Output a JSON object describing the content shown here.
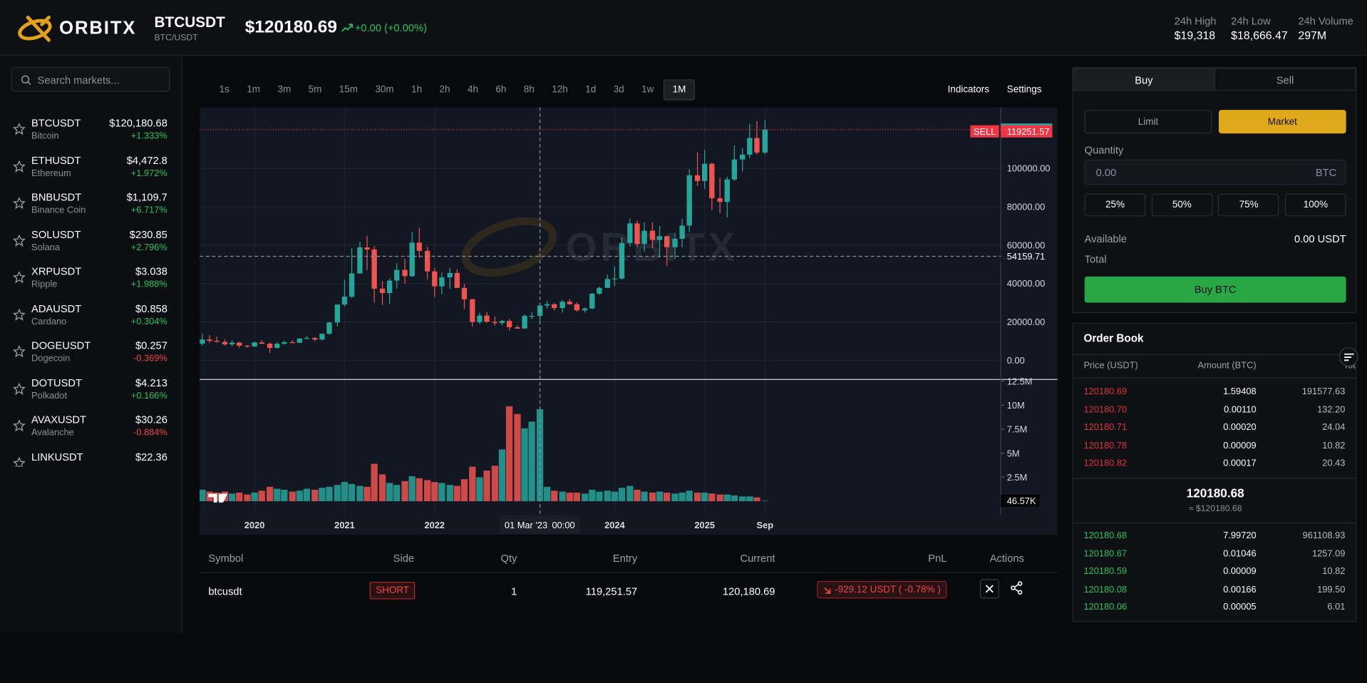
{
  "header": {
    "brand": "ORBITX",
    "symbol": "BTCUSDT",
    "pair": "BTC/USDT",
    "price": "$120180.69",
    "change": "+0.00 (+0.00%)",
    "stats": [
      {
        "label": "24h High",
        "value": "$19,318"
      },
      {
        "label": "24h Low",
        "value": "$18,666.47"
      },
      {
        "label": "24h Volume",
        "value": "297M"
      }
    ]
  },
  "sidebar": {
    "search_placeholder": "Search markets...",
    "markets": [
      {
        "symbol": "BTCUSDT",
        "name": "Bitcoin",
        "price": "$120,180.68",
        "change": "+1.333%"
      },
      {
        "symbol": "ETHUSDT",
        "name": "Ethereum",
        "price": "$4,472.8",
        "change": "+1.972%"
      },
      {
        "symbol": "BNBUSDT",
        "name": "Binance Coin",
        "price": "$1,109.7",
        "change": "+6.717%"
      },
      {
        "symbol": "SOLUSDT",
        "name": "Solana",
        "price": "$230.85",
        "change": "+2.796%"
      },
      {
        "symbol": "XRPUSDT",
        "name": "Ripple",
        "price": "$3.038",
        "change": "+1.988%"
      },
      {
        "symbol": "ADAUSDT",
        "name": "Cardano",
        "price": "$0.858",
        "change": "+0.304%"
      },
      {
        "symbol": "DOGEUSDT",
        "name": "Dogecoin",
        "price": "$0.257",
        "change": "-0.369%"
      },
      {
        "symbol": "DOTUSDT",
        "name": "Polkadot",
        "price": "$4.213",
        "change": "+0.166%"
      },
      {
        "symbol": "AVAXUSDT",
        "name": "Avalanche",
        "price": "$30.26",
        "change": "-0.884%"
      },
      {
        "symbol": "LINKUSDT",
        "price": "$22.36"
      }
    ]
  },
  "toolbar": {
    "timeframes": [
      "1s",
      "1m",
      "3m",
      "5m",
      "15m",
      "30m",
      "1h",
      "2h",
      "4h",
      "6h",
      "8h",
      "12h",
      "1d",
      "3d",
      "1w",
      "1M"
    ],
    "active": "1M",
    "indicators": "Indicators",
    "settings": "Settings"
  },
  "chart_data": {
    "type": "candlestick",
    "x": [
      2019.42,
      2019.5,
      2019.58,
      2019.67,
      2019.75,
      2019.83,
      2019.92,
      2020,
      2020.08,
      2020.17,
      2020.25,
      2020.33,
      2020.42,
      2020.5,
      2020.58,
      2020.67,
      2020.75,
      2020.83,
      2020.92,
      2021,
      2021.08,
      2021.17,
      2021.25,
      2021.33,
      2021.42,
      2021.5,
      2021.58,
      2021.67,
      2021.75,
      2021.83,
      2021.92,
      2022,
      2022.08,
      2022.17,
      2022.25,
      2022.33,
      2022.42,
      2022.5,
      2022.58,
      2022.67,
      2022.75,
      2022.83,
      2022.92,
      2023,
      2023.08,
      2023.17,
      2023.25,
      2023.33,
      2023.42,
      2023.5,
      2023.58,
      2023.67,
      2023.75,
      2023.83,
      2023.92,
      2024,
      2024.08,
      2024.17,
      2024.25,
      2024.33,
      2024.42,
      2024.5,
      2024.58,
      2024.67,
      2024.75,
      2024.83,
      2024.92,
      2025,
      2025.08,
      2025.17,
      2025.25,
      2025.33,
      2025.42,
      2025.5,
      2025.58,
      2025.67
    ],
    "open": [
      8600,
      10800,
      10100,
      9600,
      8300,
      9200,
      7600,
      7200,
      9300,
      8600,
      6400,
      8600,
      9400,
      9100,
      11300,
      11600,
      10800,
      13800,
      19700,
      29000,
      33100,
      45200,
      58800,
      57700,
      37300,
      35000,
      41500,
      47100,
      43800,
      61300,
      57000,
      46300,
      38500,
      43200,
      45500,
      37700,
      31800,
      19900,
      23300,
      20000,
      19400,
      20500,
      17200,
      16500,
      23100,
      23100,
      28500,
      29200,
      27200,
      30500,
      29200,
      26000,
      27000,
      34700,
      37700,
      42300,
      42600,
      61100,
      71300,
      60600,
      67500,
      62700,
      64600,
      58900,
      63300,
      70200,
      96400,
      93400,
      102400,
      84400,
      82500,
      94200,
      104600,
      107100,
      115800,
      108200
    ],
    "high": [
      13800,
      13200,
      12300,
      10900,
      10400,
      9500,
      7900,
      9600,
      10500,
      9200,
      9500,
      10100,
      10400,
      11500,
      12500,
      12100,
      14100,
      19900,
      29300,
      41900,
      58400,
      61800,
      64900,
      59600,
      41300,
      42600,
      50500,
      52900,
      66900,
      69000,
      59100,
      47900,
      45700,
      48200,
      47400,
      39900,
      31900,
      24700,
      25200,
      22800,
      21100,
      21500,
      18400,
      23900,
      25200,
      29200,
      31000,
      29800,
      31400,
      31800,
      30100,
      27500,
      35000,
      38400,
      44700,
      48900,
      64000,
      73800,
      72800,
      71900,
      71900,
      70000,
      65100,
      66500,
      73600,
      99600,
      108300,
      109600,
      102800,
      95000,
      95600,
      111900,
      110500,
      123200,
      124500,
      125100
    ],
    "low": [
      7700,
      9100,
      9300,
      7700,
      7300,
      6500,
      6400,
      6900,
      8500,
      3800,
      6200,
      8100,
      8900,
      9000,
      11000,
      9900,
      10400,
      13200,
      17600,
      28100,
      32300,
      45000,
      47000,
      30000,
      28800,
      29300,
      37300,
      40000,
      43300,
      53300,
      42000,
      32900,
      34300,
      37200,
      37600,
      26700,
      17600,
      18800,
      19600,
      18100,
      18200,
      15500,
      16300,
      16500,
      21400,
      19600,
      26900,
      25800,
      24800,
      28900,
      25400,
      24900,
      26600,
      34100,
      37600,
      38600,
      41900,
      59300,
      59200,
      56600,
      58400,
      53500,
      49100,
      52600,
      58900,
      66800,
      90800,
      89300,
      78300,
      76600,
      74500,
      93400,
      98300,
      105300,
      107300,
      107300
    ],
    "close": [
      10800,
      10100,
      9600,
      8300,
      9200,
      7600,
      7200,
      9300,
      8600,
      6400,
      8600,
      9400,
      9100,
      11300,
      11600,
      10800,
      13800,
      19700,
      29000,
      33100,
      45200,
      58800,
      57700,
      37300,
      35000,
      41500,
      47100,
      43800,
      61300,
      57000,
      46300,
      38500,
      43200,
      45500,
      37700,
      31800,
      19900,
      23300,
      20000,
      19400,
      20500,
      17200,
      16500,
      23100,
      23100,
      28500,
      29200,
      27200,
      30500,
      29200,
      26000,
      27000,
      34700,
      37700,
      42300,
      42600,
      61100,
      71300,
      60600,
      67500,
      62700,
      64600,
      58900,
      63300,
      70200,
      96400,
      93400,
      102400,
      84400,
      82500,
      94200,
      104600,
      107100,
      115800,
      108200,
      120180.69
    ],
    "up_color": "#26a69a",
    "down_color": "#ef5350",
    "xlim": [
      2019.39,
      2028.29
    ],
    "xticks": [
      2020,
      2021,
      2022,
      2024,
      2025,
      {
        "value": 2025.67,
        "label": "Sep"
      }
    ],
    "ylim": [
      -10000,
      131800
    ],
    "yticks": [
      {
        "value": 0,
        "label": "0.00"
      },
      {
        "value": 20000,
        "label": "20000.00"
      },
      {
        "value": 40000,
        "label": "40000.00"
      },
      {
        "value": 60000,
        "label": "60000.00"
      },
      {
        "value": 80000,
        "label": "80000.00"
      },
      {
        "value": 100000,
        "label": "100000.00"
      }
    ],
    "grid": true,
    "volume": {
      "values": [
        1200000,
        1000000,
        900000,
        1000000,
        800000,
        900000,
        700000,
        900000,
        1100000,
        1500000,
        1300000,
        1200000,
        1000000,
        1100000,
        1300000,
        1200000,
        1400000,
        1500000,
        1700000,
        2000000,
        1800000,
        1600000,
        1500000,
        3900000,
        2800000,
        1900000,
        1700000,
        2100000,
        2600000,
        2400000,
        2200000,
        2000000,
        1900000,
        1700000,
        1600000,
        2300000,
        3600000,
        2500000,
        3200000,
        3700000,
        5400000,
        9900000,
        9100000,
        7600000,
        8300000,
        9600000,
        1500000,
        1100000,
        1000000,
        900000,
        900000,
        800000,
        1200000,
        1000000,
        1100000,
        1000000,
        1400000,
        1600000,
        1200000,
        1000000,
        900000,
        1000000,
        900000,
        800000,
        900000,
        1100000,
        900000,
        900000,
        800000,
        700000,
        700000,
        600000,
        500000,
        500000,
        400000,
        46570
      ],
      "ylim": [
        -1400000,
        12700000
      ],
      "yticks": [
        {
          "value": 2500000,
          "label": "2.5M"
        },
        {
          "value": 5000000,
          "label": "5M"
        },
        {
          "value": 7500000,
          "label": "7.5M"
        },
        {
          "value": 10000000,
          "label": "10M"
        },
        {
          "value": 12500000,
          "label": "12.5M"
        }
      ],
      "last_label": "46.57K"
    },
    "price_lines": [
      {
        "value": 120180.69,
        "color": "#26a69a"
      },
      {
        "value": 119251.57,
        "label": "SELL",
        "color": "#f23645"
      }
    ],
    "crosshair": {
      "x": {
        "value": 2023.17,
        "label": "01 Mar '23"
      },
      "time": "00:00",
      "y": 54159.71
    }
  },
  "positions": {
    "columns": [
      "Symbol",
      "Side",
      "Qty",
      "Entry",
      "Current",
      "PnL",
      "Actions"
    ],
    "rows": [
      [
        "btcusdt",
        "SHORT",
        "1",
        "119,251.57",
        "120,180.69",
        "-929.12 USDT ( -0.78% )"
      ]
    ]
  },
  "order_form": {
    "tabs": [
      "Buy",
      "Sell"
    ],
    "active_tab": "Buy",
    "order_types": [
      "Limit",
      "Market"
    ],
    "active_type": "Market",
    "quantity_label": "Quantity",
    "quantity_placeholder": "0.00",
    "quantity_unit": "BTC",
    "percentages": [
      "25%",
      "50%",
      "75%",
      "100%"
    ],
    "available_label": "Available",
    "available": "0.00 USDT",
    "total_label": "Total",
    "submit": "Buy BTC"
  },
  "order_book": {
    "title": "Order Book",
    "columns": [
      "Price (USDT)",
      "Amount (BTC)",
      "Total"
    ],
    "asks": [
      [
        "120180.69",
        "1.59408",
        "191577.63"
      ],
      [
        "120180.70",
        "0.00110",
        "132.20"
      ],
      [
        "120180.71",
        "0.00020",
        "24.04"
      ],
      [
        "120180.78",
        "0.00009",
        "10.82"
      ],
      [
        "120180.82",
        "0.00017",
        "20.43"
      ]
    ],
    "mid_price": "120180.68",
    "mid_usd": "≈ $120180.68",
    "bids": [
      [
        "120180.68",
        "7.99720",
        "961108.93"
      ],
      [
        "120180.67",
        "0.01046",
        "1257.09"
      ],
      [
        "120180.59",
        "0.00009",
        "10.82"
      ],
      [
        "120180.08",
        "0.00166",
        "199.50"
      ],
      [
        "120180.06",
        "0.00005",
        "6.01"
      ]
    ]
  }
}
